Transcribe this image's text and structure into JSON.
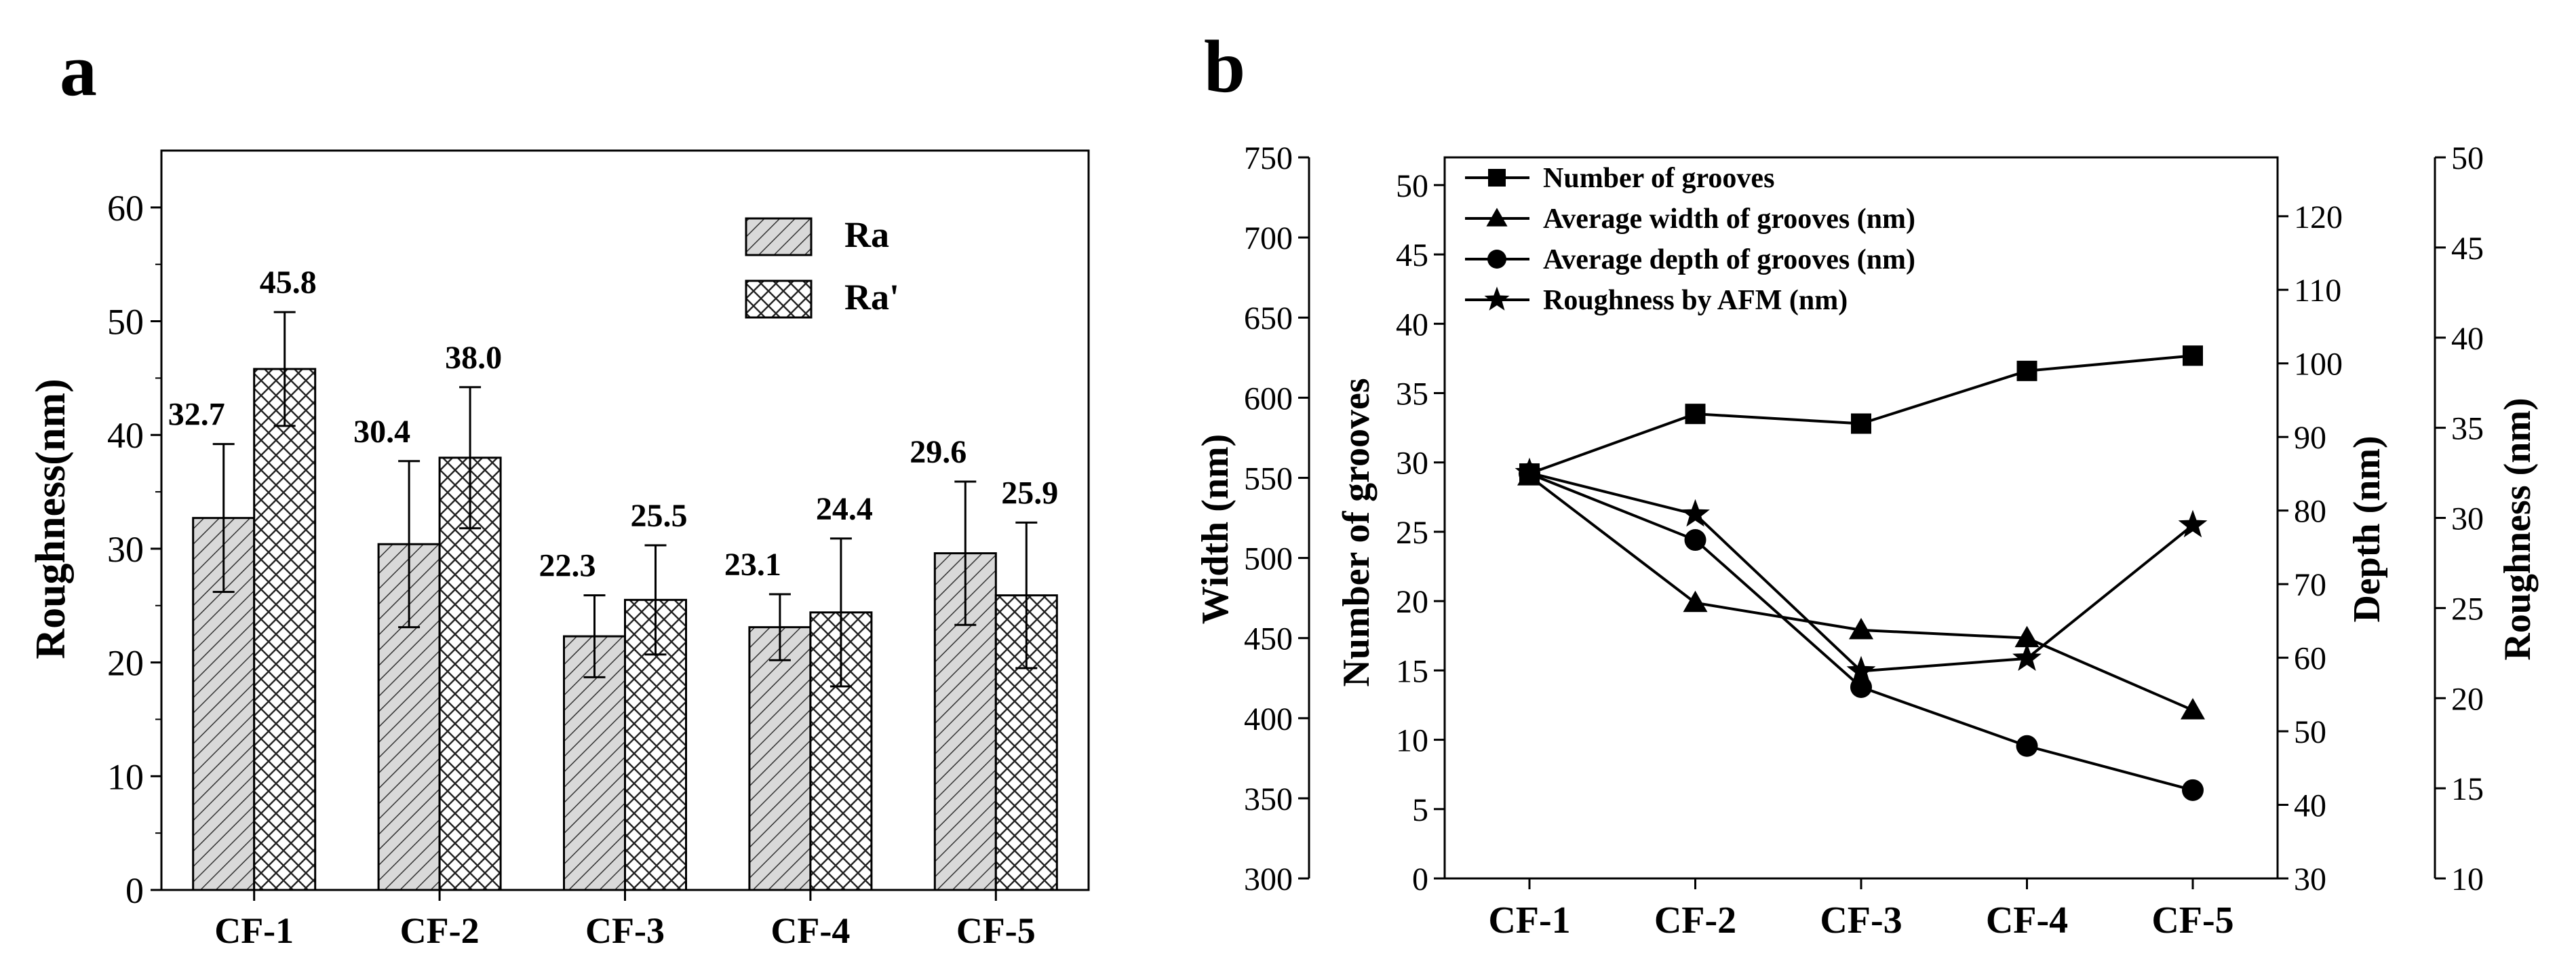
{
  "chart_data": [
    {
      "panel_label": "a",
      "type": "bar",
      "categories": [
        "CF-1",
        "CF-2",
        "CF-3",
        "CF-4",
        "CF-5"
      ],
      "series": [
        {
          "name": "Ra",
          "pattern": "diagonal-hatch",
          "values": [
            32.7,
            30.4,
            22.3,
            23.1,
            29.6
          ],
          "labels": [
            "32.7",
            "30.4",
            "22.3",
            "23.1",
            "29.6"
          ],
          "error": [
            6.5,
            7.3,
            3.6,
            2.9,
            6.3
          ]
        },
        {
          "name": "Ra'",
          "pattern": "cross-hatch",
          "values": [
            45.8,
            38.0,
            25.5,
            24.4,
            25.9
          ],
          "labels": [
            "45.8",
            "38.0",
            "25.5",
            "24.4",
            "25.9"
          ],
          "error": [
            5.0,
            6.2,
            4.8,
            6.5,
            6.4
          ]
        }
      ],
      "title": "",
      "xlabel": "",
      "ylabel": "Roughness(nm)",
      "ylim": [
        0,
        65
      ],
      "yticks": [
        0,
        10,
        20,
        30,
        40,
        50,
        60
      ],
      "legend_position": "top-right",
      "grid": false
    },
    {
      "panel_label": "b",
      "type": "line",
      "categories": [
        "CF-1",
        "CF-2",
        "CF-3",
        "CF-4",
        "CF-5"
      ],
      "axes": [
        {
          "id": "grooves",
          "label": "Number of grooves",
          "side": "left-inner",
          "range": [
            0,
            52
          ],
          "ticks": [
            0,
            5,
            10,
            15,
            20,
            25,
            30,
            35,
            40,
            45,
            50
          ]
        },
        {
          "id": "width",
          "label": "Width (nm)",
          "side": "left-outer",
          "range": [
            300,
            750
          ],
          "ticks": [
            300,
            350,
            400,
            450,
            500,
            550,
            600,
            650,
            700,
            750
          ]
        },
        {
          "id": "depth",
          "label": "Depth (nm)",
          "side": "right-inner",
          "range": [
            30,
            128
          ],
          "ticks": [
            30,
            40,
            50,
            60,
            70,
            80,
            90,
            100,
            110,
            120
          ]
        },
        {
          "id": "roughness",
          "label": "Roughness (nm)",
          "side": "right-outer",
          "range": [
            10,
            50
          ],
          "ticks": [
            10,
            15,
            20,
            25,
            30,
            35,
            40,
            45,
            50
          ]
        }
      ],
      "series": [
        {
          "name": "Number of grooves",
          "marker": "square",
          "axis": "grooves",
          "values": [
            29.2,
            33.5,
            32.8,
            36.6,
            37.7
          ]
        },
        {
          "name": "Average width of grooves (nm)",
          "marker": "triangle",
          "axis": "width",
          "values": [
            551,
            472,
            455,
            450,
            405
          ]
        },
        {
          "name": "Average depth of grooves (nm)",
          "marker": "circle",
          "axis": "depth",
          "values": [
            85,
            76,
            56,
            48,
            42
          ]
        },
        {
          "name": "Roughness by AFM (nm)",
          "marker": "star",
          "axis": "roughness",
          "values": [
            32.5,
            30.2,
            21.5,
            22.2,
            29.6
          ]
        }
      ],
      "title": "",
      "legend_position": "top-left",
      "grid": false
    }
  ]
}
